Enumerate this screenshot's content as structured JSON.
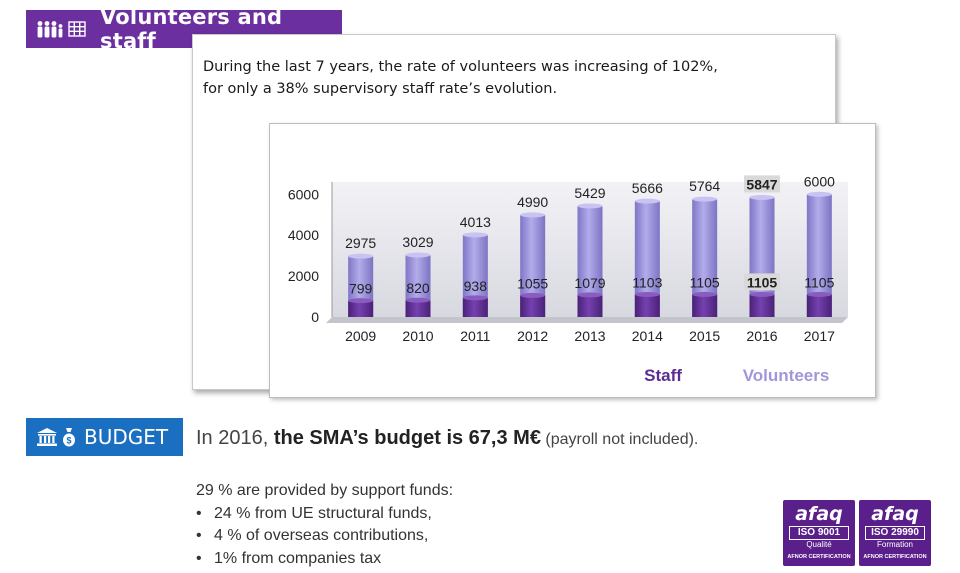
{
  "volunteers_section": {
    "title": "Volunteers and staff",
    "icons": [
      "people-icon",
      "grid-icon"
    ],
    "intro_line1": "During the last 7 years, the rate of volunteers was increasing of 102%,",
    "intro_line2": "for only a 38% supervisory staff rate’s evolution."
  },
  "chart_data": {
    "type": "bar",
    "stacked": true,
    "categories": [
      "2009",
      "2010",
      "2011",
      "2012",
      "2013",
      "2014",
      "2015",
      "2016",
      "2017"
    ],
    "series": [
      {
        "name": "Staff",
        "values": [
          799,
          820,
          938,
          1055,
          1079,
          1103,
          1105,
          1105,
          1105
        ],
        "color": "#5c2d91"
      },
      {
        "name": "Volunteers",
        "values": [
          2975,
          3029,
          4013,
          4990,
          5429,
          5666,
          5764,
          5847,
          6000
        ],
        "color": "#9f97d8"
      }
    ],
    "yticks": [
      0,
      2000,
      4000,
      6000
    ],
    "ylim": [
      0,
      6600
    ],
    "highlight_category": "2016",
    "legend_placement": "bottom-right",
    "grid": false
  },
  "budget_section": {
    "title": "BUDGET",
    "icons": [
      "bank-icon",
      "money-bag-icon"
    ],
    "line_prefix": "In 2016, ",
    "line_bold": "the SMA’s budget is 67,3 M€",
    "line_note": " (payroll not included).",
    "funds_title": "29 % are provided by support funds:",
    "funds_items": [
      "24 % from UE structural funds,",
      "4 % of overseas contributions,",
      "1% from companies tax"
    ]
  },
  "certifications": [
    {
      "brand": "afaq",
      "standard": "ISO 9001",
      "label": "Qualité",
      "certifier": "AFNOR CERTIFICATION"
    },
    {
      "brand": "afaq",
      "standard": "ISO 29990",
      "label": "Formation",
      "certifier": "AFNOR CERTIFICATION"
    }
  ]
}
